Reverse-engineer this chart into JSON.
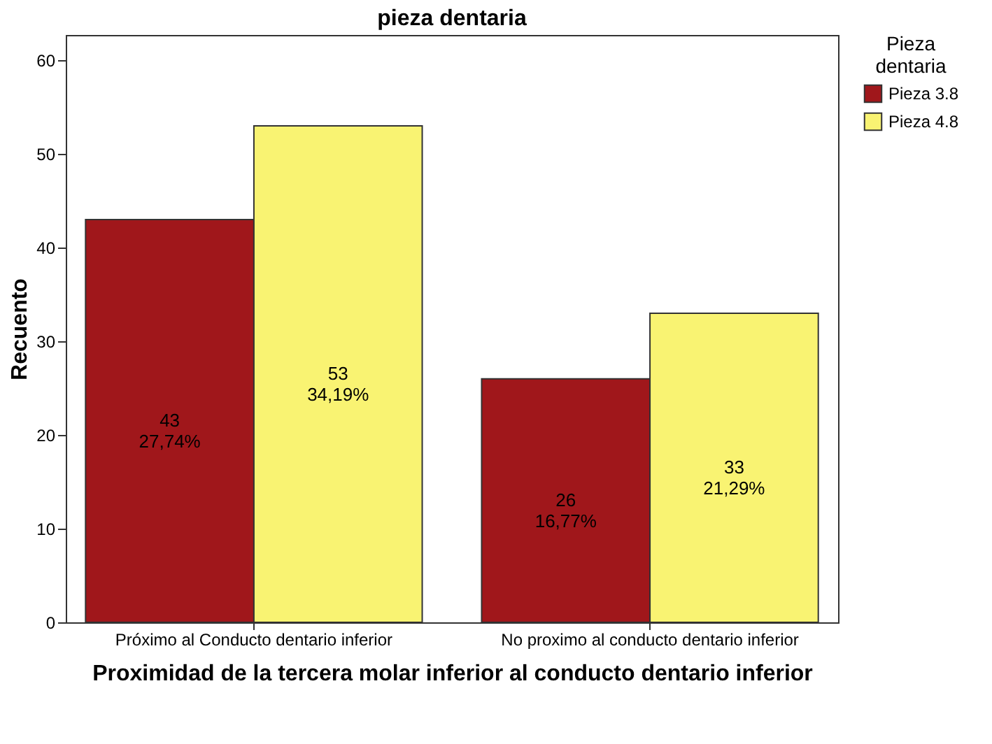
{
  "chart_data": {
    "type": "bar",
    "title": "pieza dentaria",
    "xlabel": "Proximidad de la tercera molar inferior al conducto dentario inferior",
    "ylabel": "Recuento",
    "legend_title": "Pieza dentaria",
    "categories": [
      "Próximo al Conducto dentario inferior",
      "No proximo al conducto dentario inferior"
    ],
    "series": [
      {
        "name": "Pieza 3.8",
        "color": "#a0171b",
        "values": [
          43,
          26
        ],
        "value_labels": [
          "43\n27,74%",
          "26\n16,77%"
        ]
      },
      {
        "name": "Pieza 4.8",
        "color": "#f9f372",
        "values": [
          53,
          33
        ],
        "value_labels": [
          "53\n34,19%",
          "33\n21,29%"
        ]
      }
    ],
    "ylim": [
      0,
      62.7
    ],
    "yticks": [
      0,
      10,
      20,
      30,
      40,
      50,
      60
    ],
    "grid": false,
    "legend": "top right"
  }
}
